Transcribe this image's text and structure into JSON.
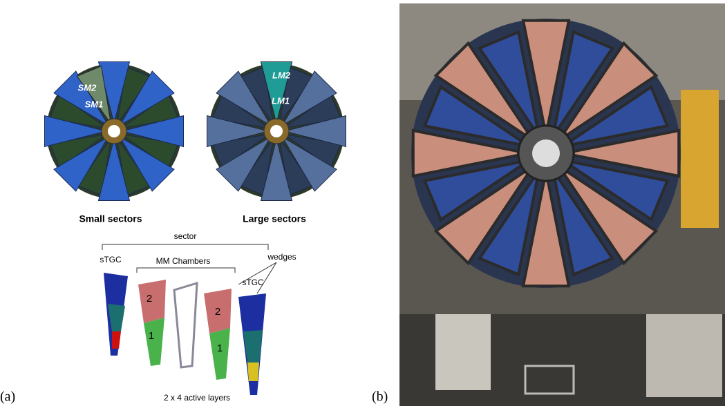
{
  "panel_a": {
    "label": "(a)",
    "wheels": [
      {
        "caption": "Small sectors",
        "labels": [
          "SM2",
          "SM1"
        ]
      },
      {
        "caption": "Large sectors",
        "labels": [
          "LM2",
          "LM1"
        ]
      }
    ],
    "exploded": {
      "sector": "sector",
      "stgc_left": "sTGC",
      "mm": "MM Chambers",
      "wedges": "wedges",
      "stgc_right": "sTGC",
      "mm_numbers": [
        "2",
        "1",
        "2",
        "1"
      ],
      "caption": "2 x 4 active layers"
    }
  },
  "panel_b": {
    "label": "(b)"
  }
}
